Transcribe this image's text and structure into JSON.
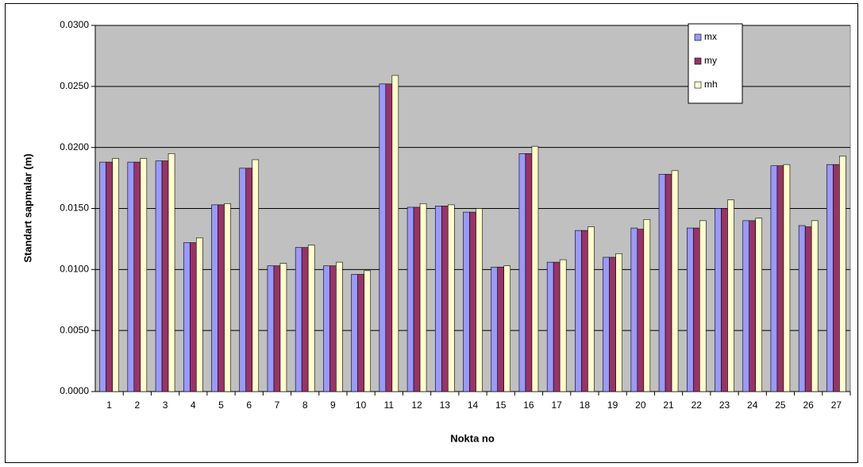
{
  "chart_data": {
    "type": "bar",
    "x_label": "Nokta no",
    "y_label": "Standart sapmalar (m)",
    "categories": [
      "1",
      "2",
      "3",
      "4",
      "5",
      "6",
      "7",
      "8",
      "9",
      "10",
      "11",
      "12",
      "13",
      "14",
      "15",
      "16",
      "17",
      "18",
      "19",
      "20",
      "21",
      "22",
      "23",
      "24",
      "25",
      "26",
      "27"
    ],
    "series": [
      {
        "name": "mx",
        "color": "#9999ff",
        "values": [
          0.0188,
          0.0188,
          0.0189,
          0.0122,
          0.0153,
          0.0183,
          0.0103,
          0.0118,
          0.0103,
          0.0096,
          0.0252,
          0.0151,
          0.0152,
          0.0147,
          0.0102,
          0.0195,
          0.0106,
          0.0132,
          0.011,
          0.0134,
          0.0178,
          0.0134,
          0.015,
          0.014,
          0.0185,
          0.0136,
          0.0186
        ]
      },
      {
        "name": "my",
        "color": "#993366",
        "values": [
          0.0188,
          0.0188,
          0.0189,
          0.0122,
          0.0153,
          0.0183,
          0.0103,
          0.0118,
          0.0103,
          0.0096,
          0.0252,
          0.0151,
          0.0152,
          0.0147,
          0.0102,
          0.0195,
          0.0106,
          0.0132,
          0.011,
          0.0133,
          0.0178,
          0.0134,
          0.015,
          0.014,
          0.0185,
          0.0135,
          0.0186
        ]
      },
      {
        "name": "mh",
        "color": "#ffffcc",
        "values": [
          0.0191,
          0.0191,
          0.0195,
          0.0126,
          0.0154,
          0.019,
          0.0105,
          0.012,
          0.0106,
          0.0099,
          0.0259,
          0.0154,
          0.0153,
          0.015,
          0.0103,
          0.0201,
          0.0108,
          0.0135,
          0.0113,
          0.0141,
          0.0181,
          0.014,
          0.0157,
          0.0142,
          0.0186,
          0.014,
          0.0193
        ]
      }
    ],
    "ylim": [
      0,
      0.03
    ],
    "yticks": [
      {
        "value": 0,
        "label": "0.0000"
      },
      {
        "value": 0.005,
        "label": "0.0050"
      },
      {
        "value": 0.01,
        "label": "0.0100"
      },
      {
        "value": 0.015,
        "label": "0.0150"
      },
      {
        "value": 0.02,
        "label": "0.0200"
      },
      {
        "value": 0.025,
        "label": "0.0250"
      },
      {
        "value": 0.03,
        "label": "0.0300"
      }
    ],
    "grid": true,
    "legend": "top-right",
    "plot_background": "#c0c0c0"
  }
}
